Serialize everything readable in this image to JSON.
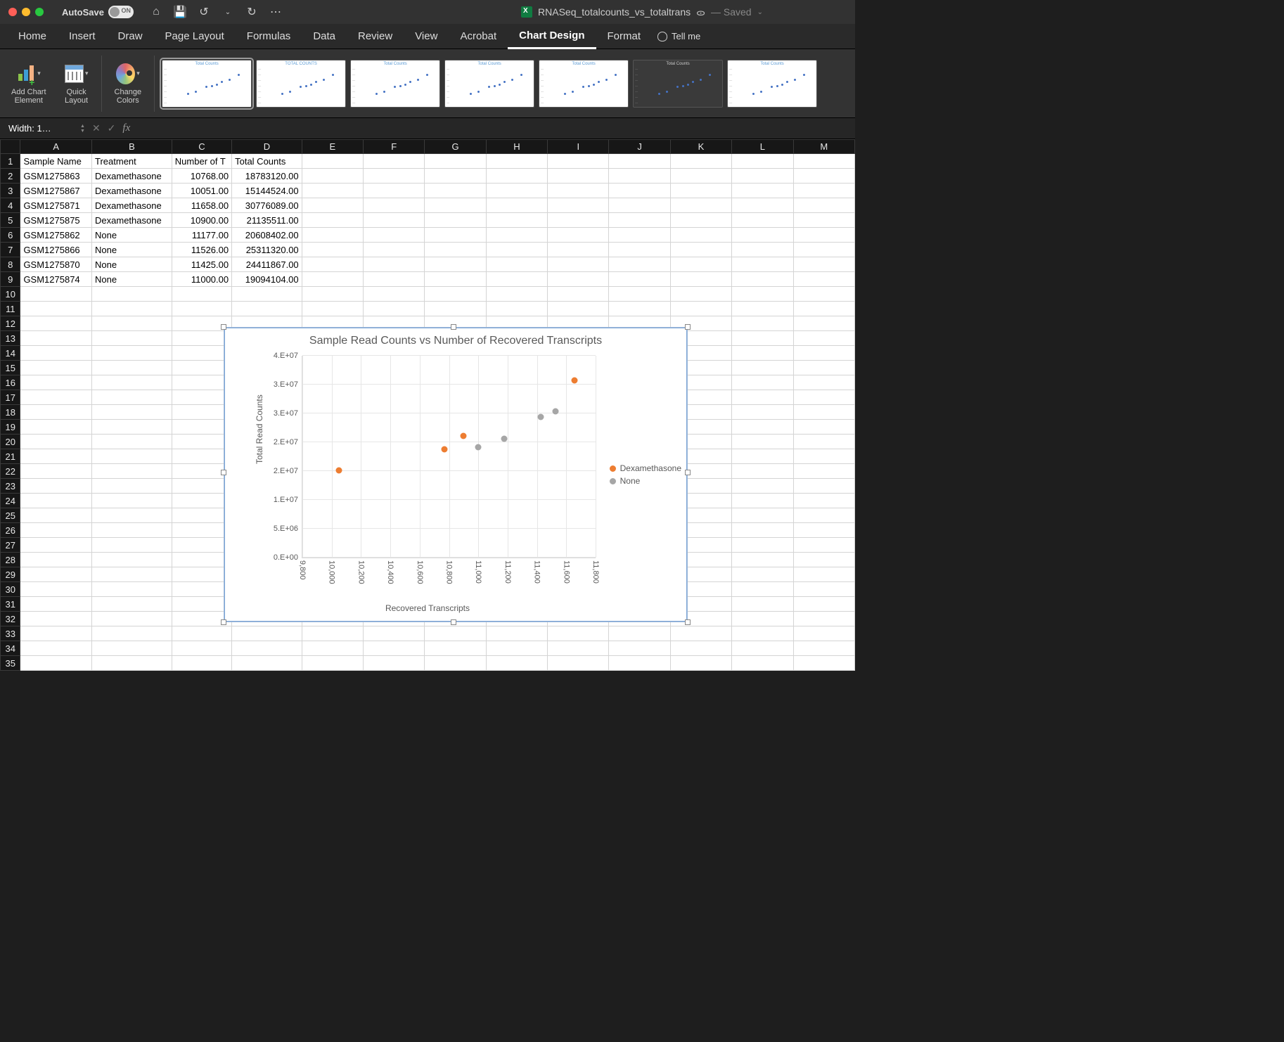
{
  "titlebar": {
    "autosave_label": "AutoSave",
    "autosave_state": "ON",
    "doc_name": "RNASeq_totalcounts_vs_totaltrans",
    "saved_label": "— Saved",
    "qat": {
      "home": "⌂",
      "save": "💾",
      "undo": "↺",
      "undo_caret": "⌄",
      "redo": "↻",
      "more": "⋯"
    }
  },
  "ribbon_tabs": [
    "Home",
    "Insert",
    "Draw",
    "Page Layout",
    "Formulas",
    "Data",
    "Review",
    "View",
    "Acrobat",
    "Chart Design",
    "Format"
  ],
  "active_tab": "Chart Design",
  "tellme_label": "Tell me",
  "ribbon": {
    "add_chart_element": "Add Chart\nElement",
    "quick_layout": "Quick\nLayout",
    "change_colors": "Change\nColors",
    "style_thumb_title": "Total Counts",
    "style_thumb_title_upper": "TOTAL COUNTS"
  },
  "namebox": "Width: 1…",
  "columns": [
    "A",
    "B",
    "C",
    "D",
    "E",
    "F",
    "G",
    "H",
    "I",
    "J",
    "K",
    "L",
    "M"
  ],
  "headers": {
    "A": "Sample Name",
    "B": "Treatment",
    "C": "Number of T",
    "D": "Total Counts"
  },
  "rows": [
    {
      "A": "GSM1275863",
      "B": "Dexamethasone",
      "C": "10768.00",
      "D": "18783120.00"
    },
    {
      "A": "GSM1275867",
      "B": "Dexamethasone",
      "C": "10051.00",
      "D": "15144524.00"
    },
    {
      "A": "GSM1275871",
      "B": "Dexamethasone",
      "C": "11658.00",
      "D": "30776089.00"
    },
    {
      "A": "GSM1275875",
      "B": "Dexamethasone",
      "C": "10900.00",
      "D": "21135511.00"
    },
    {
      "A": "GSM1275862",
      "B": "None",
      "C": "11177.00",
      "D": "20608402.00"
    },
    {
      "A": "GSM1275866",
      "B": "None",
      "C": "11526.00",
      "D": "25311320.00"
    },
    {
      "A": "GSM1275870",
      "B": "None",
      "C": "11425.00",
      "D": "24411867.00"
    },
    {
      "A": "GSM1275874",
      "B": "None",
      "C": "11000.00",
      "D": "19094104.00"
    }
  ],
  "total_body_rows": 35,
  "chart": {
    "title": "Sample Read Counts vs Number of Recovered Transcripts",
    "ylabel": "Total Read Counts",
    "xlabel": "Recovered Transcripts",
    "xlim": [
      9800,
      11800
    ],
    "ylim": [
      0,
      35000000
    ],
    "yticks": [
      {
        "v": 0,
        "label": "0.E+00"
      },
      {
        "v": 5000000,
        "label": "5.E+06"
      },
      {
        "v": 10000000,
        "label": "1.E+07"
      },
      {
        "v": 15000000,
        "label": "2.E+07"
      },
      {
        "v": 20000000,
        "label": "2.E+07"
      },
      {
        "v": 25000000,
        "label": "3.E+07"
      },
      {
        "v": 30000000,
        "label": "3.E+07"
      },
      {
        "v": 35000000,
        "label": "4.E+07"
      }
    ],
    "xticks": [
      {
        "v": 9800,
        "label": "9,800"
      },
      {
        "v": 10000,
        "label": "10,000"
      },
      {
        "v": 10200,
        "label": "10,200"
      },
      {
        "v": 10400,
        "label": "10,400"
      },
      {
        "v": 10600,
        "label": "10,600"
      },
      {
        "v": 10800,
        "label": "10,800"
      },
      {
        "v": 11000,
        "label": "11,000"
      },
      {
        "v": 11200,
        "label": "11,200"
      },
      {
        "v": 11400,
        "label": "11,400"
      },
      {
        "v": 11600,
        "label": "11,600"
      },
      {
        "v": 11800,
        "label": "11,800"
      }
    ],
    "series": [
      {
        "name": "Dexamethasone",
        "color": "#ed7d31",
        "points": [
          {
            "x": 10768,
            "y": 18783120
          },
          {
            "x": 10051,
            "y": 15144524
          },
          {
            "x": 11658,
            "y": 30776089
          },
          {
            "x": 10900,
            "y": 21135511
          }
        ]
      },
      {
        "name": "None",
        "color": "#a6a6a6",
        "points": [
          {
            "x": 11177,
            "y": 20608402
          },
          {
            "x": 11526,
            "y": 25311320
          },
          {
            "x": 11425,
            "y": 24411867
          },
          {
            "x": 11000,
            "y": 19094104
          }
        ]
      }
    ],
    "grid_color": "#e6e6e6",
    "background": "#ffffff",
    "title_fontsize": 16,
    "label_fontsize": 12,
    "tick_fontsize": 11,
    "marker_size": 9
  }
}
